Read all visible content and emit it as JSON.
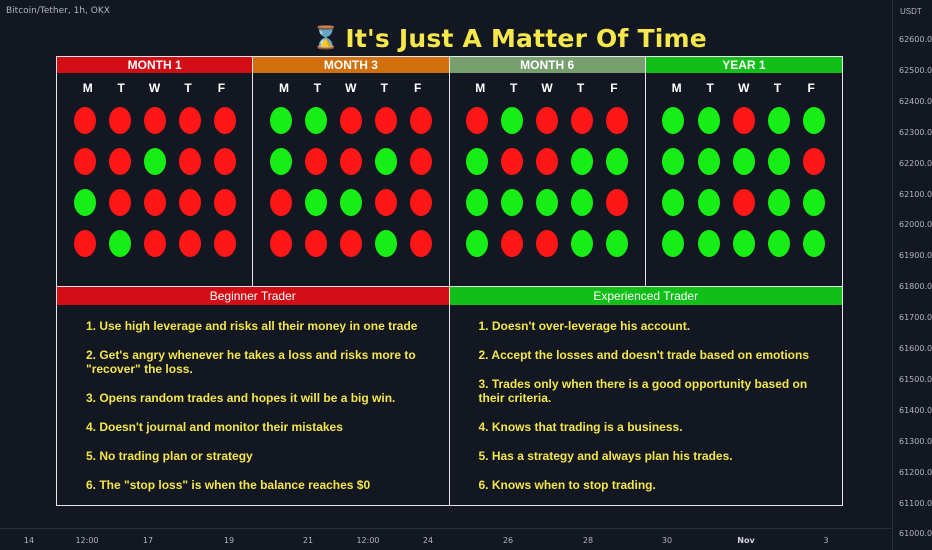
{
  "chart_header": {
    "symbol": "Bitcoin/Tether, 1h, OKX"
  },
  "title": {
    "icon": "hourglass-icon",
    "glyph": "⌛",
    "text": "It's Just A Matter Of Time"
  },
  "price_axis": {
    "unit": "USDT",
    "ticks": [
      "62600.0",
      "62500.0",
      "62400.0",
      "62300.0",
      "62200.0",
      "62100.0",
      "62000.0",
      "61900.0",
      "61800.0",
      "61700.0",
      "61600.0",
      "61500.0",
      "61400.0",
      "61300.0",
      "61200.0",
      "61100.0",
      "61000.0"
    ]
  },
  "time_axis": {
    "ticks": [
      "14",
      "12:00",
      "17",
      "19",
      "21",
      "12:00",
      "24",
      "26",
      "28",
      "30",
      "Nov",
      "3"
    ]
  },
  "colors": {
    "red": "#ff1717",
    "green": "#16ee16",
    "month1": "#d30d16",
    "month3": "#d1700c",
    "month6": "#77a06e",
    "year1": "#11bf18",
    "beginner": "#d30d16",
    "experienced": "#11bf18"
  },
  "periods": [
    {
      "label": "MONTH 1",
      "color": "#d30d16",
      "days": [
        "M",
        "T",
        "W",
        "T",
        "F"
      ],
      "rows": [
        [
          "red",
          "red",
          "red",
          "red",
          "red"
        ],
        [
          "red",
          "red",
          "green",
          "red",
          "red"
        ],
        [
          "green",
          "red",
          "red",
          "red",
          "red"
        ],
        [
          "red",
          "green",
          "red",
          "red",
          "red"
        ]
      ]
    },
    {
      "label": "MONTH 3",
      "color": "#d1700c",
      "days": [
        "M",
        "T",
        "W",
        "T",
        "F"
      ],
      "rows": [
        [
          "green",
          "green",
          "red",
          "red",
          "red"
        ],
        [
          "green",
          "red",
          "red",
          "green",
          "red"
        ],
        [
          "red",
          "green",
          "green",
          "red",
          "red"
        ],
        [
          "red",
          "red",
          "red",
          "green",
          "red"
        ]
      ]
    },
    {
      "label": "MONTH 6",
      "color": "#77a06e",
      "days": [
        "M",
        "T",
        "W",
        "T",
        "F"
      ],
      "rows": [
        [
          "red",
          "green",
          "red",
          "red",
          "red"
        ],
        [
          "green",
          "red",
          "red",
          "green",
          "green"
        ],
        [
          "green",
          "green",
          "green",
          "green",
          "red"
        ],
        [
          "green",
          "red",
          "red",
          "green",
          "green"
        ]
      ]
    },
    {
      "label": "YEAR 1",
      "color": "#11bf18",
      "days": [
        "M",
        "T",
        "W",
        "T",
        "F"
      ],
      "rows": [
        [
          "green",
          "green",
          "red",
          "green",
          "green"
        ],
        [
          "green",
          "green",
          "green",
          "green",
          "red"
        ],
        [
          "green",
          "green",
          "red",
          "green",
          "green"
        ],
        [
          "green",
          "green",
          "green",
          "green",
          "green"
        ]
      ]
    }
  ],
  "traders": [
    {
      "label": "Beginner Trader",
      "color": "#d30d16",
      "items": [
        "1. Use high leverage and risks all their money in one trade",
        "2. Get's angry whenever he takes a loss and risks more to \"recover\" the loss.",
        "3. Opens random trades and hopes it will be a big win.",
        "4. Doesn't journal and monitor their mistakes",
        "5. No trading plan or strategy",
        "6. The \"stop loss\" is when the balance reaches $0"
      ]
    },
    {
      "label": "Experienced Trader",
      "color": "#11bf18",
      "items": [
        "1. Doesn't over-leverage his account.",
        "2. Accept the losses and doesn't trade based on emotions",
        "3. Trades only when there is a good opportunity based on their criteria.",
        "4. Knows that trading is a business.",
        "5. Has a strategy and always plan his trades.",
        "6. Knows when to stop trading."
      ]
    }
  ]
}
